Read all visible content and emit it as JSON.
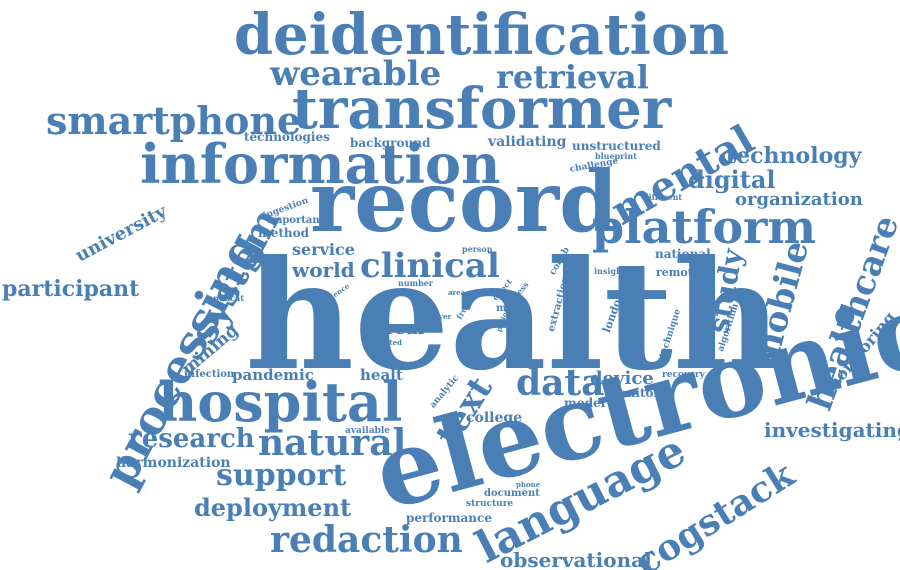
{
  "color": "#4a7fb5",
  "words": [
    "health",
    "electronic",
    "record",
    "information",
    "transformer",
    "deidentification",
    "language",
    "processing",
    "hospital",
    "platform",
    "mental",
    "system",
    "data",
    "text",
    "clinical",
    "natural",
    "mobile",
    "healthcare",
    "cogstack",
    "smartphone",
    "retrieval",
    "wearable",
    "research",
    "support",
    "redaction",
    "deployment",
    "observational",
    "technology",
    "digital",
    "study",
    "investigating",
    "participant",
    "university",
    "world",
    "service",
    "real",
    "device",
    "organization",
    "monitoring",
    "mining",
    "harmonization",
    "pandemic",
    "college",
    "model",
    "monitor",
    "healt",
    "infection",
    "performance",
    "document",
    "structure",
    "national",
    "remote",
    "unstructured",
    "validating",
    "technologies",
    "background",
    "challenge",
    "blueprint",
    "different",
    "method",
    "important",
    "ingestion",
    "collab",
    "london",
    "extraction",
    "technique",
    "algorithm",
    "insight",
    "recovery",
    "available",
    "analytic",
    "anoncat",
    "person",
    "number",
    "science",
    "effect",
    "fitness",
    "patient",
    "period",
    "more",
    "free",
    "area",
    "cover",
    "related",
    "phone"
  ]
}
